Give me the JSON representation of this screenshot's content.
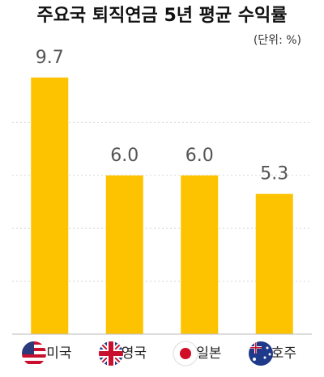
{
  "chart_data": {
    "type": "bar",
    "title": "주요국 퇴직연금 5년 평균 수익률",
    "subtitle": "(단위: %)",
    "categories": [
      "미국",
      "영국",
      "일본",
      "호주"
    ],
    "values": [
      9.7,
      6.0,
      6.0,
      5.3
    ],
    "value_labels": [
      "9.7",
      "6.0",
      "6.0",
      "5.3"
    ],
    "color": "#fdc300",
    "ylim": [
      0,
      10
    ],
    "yticks": [
      0,
      2,
      4,
      6,
      8
    ],
    "grid": true
  }
}
